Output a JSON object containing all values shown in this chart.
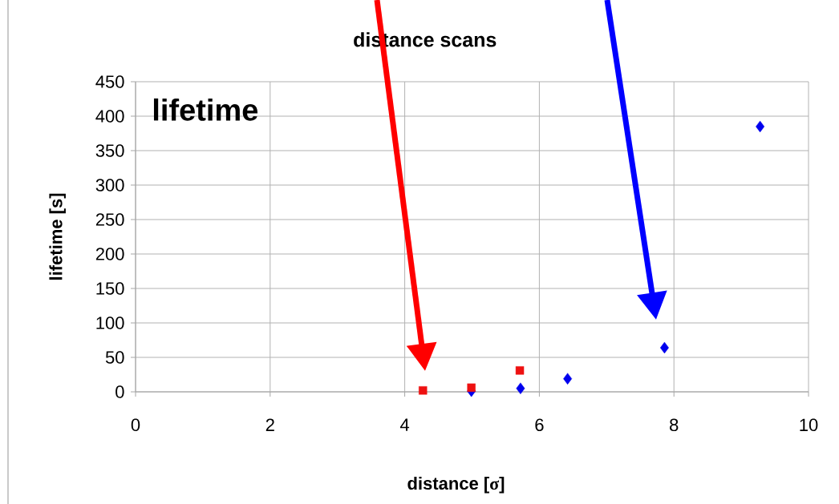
{
  "chart_data": {
    "type": "scatter",
    "title": "distance scans",
    "xlabel": "distance [σ]",
    "ylabel": "lifetime [s]",
    "annotations": [
      "lifetime"
    ],
    "xlim": [
      0,
      10
    ],
    "xticks": [
      0,
      2,
      4,
      6,
      8,
      10
    ],
    "ylim": [
      0,
      450
    ],
    "yticks": [
      0,
      50,
      100,
      150,
      200,
      250,
      300,
      350,
      400,
      450
    ],
    "grid": true,
    "series": [
      {
        "color": "#0000ee",
        "marker": "diamond",
        "x": [
          4.99,
          5.72,
          6.42,
          7.86,
          9.28
        ],
        "values": [
          1,
          5,
          19,
          64,
          385
        ]
      },
      {
        "color": "#ee1111",
        "marker": "square",
        "x": [
          4.27,
          4.99,
          5.71
        ],
        "values": [
          2,
          6,
          31
        ]
      }
    ]
  }
}
